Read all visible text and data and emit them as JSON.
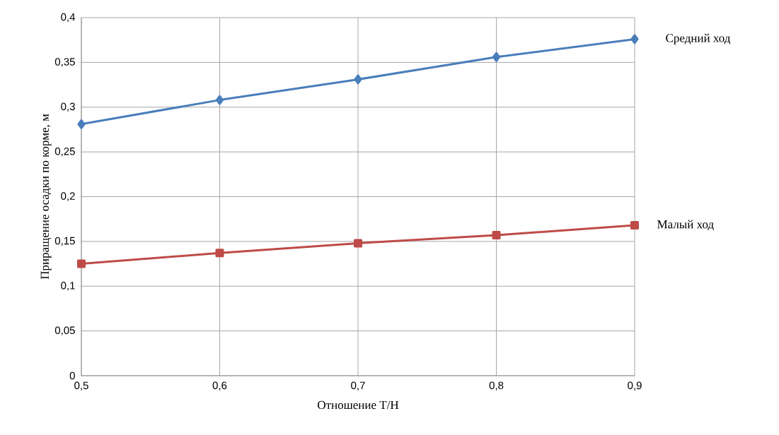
{
  "chart_data": {
    "type": "line",
    "xlabel": "Отношение T/H",
    "ylabel": "Приращение осадки по корме, м",
    "x": [
      0.5,
      0.6,
      0.7,
      0.8,
      0.9
    ],
    "series": [
      {
        "name": "Средний ход",
        "color": "#4a7ebb",
        "marker": "diamond",
        "values": [
          0.281,
          0.308,
          0.331,
          0.356,
          0.376
        ]
      },
      {
        "name": "Малый ход",
        "color": "#be4b48",
        "marker": "square",
        "values": [
          0.125,
          0.137,
          0.148,
          0.157,
          0.168
        ]
      }
    ],
    "xlim": [
      0.5,
      0.9
    ],
    "xticks": [
      {
        "value": 0.5,
        "label": "0,5"
      },
      {
        "value": 0.6,
        "label": "0,6"
      },
      {
        "value": 0.7,
        "label": "0,7"
      },
      {
        "value": 0.8,
        "label": "0,8"
      },
      {
        "value": 0.9,
        "label": "0,9"
      }
    ],
    "ylim": [
      0,
      0.4
    ],
    "yticks": [
      0,
      {
        "value": 0.05,
        "label": "0,05"
      },
      {
        "value": 0.1,
        "label": "0,1"
      },
      {
        "value": 0.15,
        "label": "0,15"
      },
      {
        "value": 0.2,
        "label": "0,2"
      },
      {
        "value": 0.25,
        "label": "0,25"
      },
      {
        "value": 0.3,
        "label": "0,3"
      },
      {
        "value": 0.35,
        "label": "0,35"
      },
      {
        "value": 0.4,
        "label": "0,4"
      }
    ],
    "grid": true,
    "line_style": "solid"
  }
}
